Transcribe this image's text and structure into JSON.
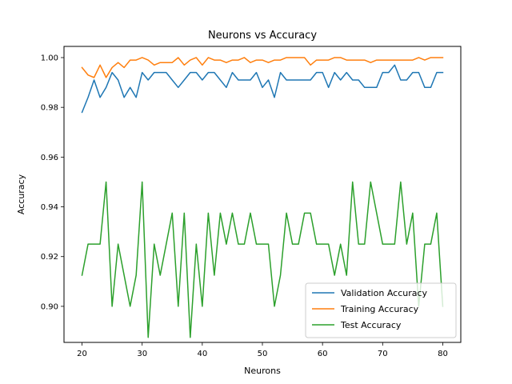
{
  "chart_data": {
    "type": "line",
    "title": "Neurons vs Accuracy",
    "xlabel": "Neurons",
    "ylabel": "Accuracy",
    "xlim": [
      17,
      83
    ],
    "ylim": [
      0.8855,
      1.0045
    ],
    "xticks": [
      20,
      30,
      40,
      50,
      60,
      70,
      80
    ],
    "xtick_labels": [
      "20",
      "30",
      "40",
      "50",
      "60",
      "70",
      "80"
    ],
    "yticks": [
      0.9,
      0.92,
      0.94,
      0.96,
      0.98,
      1.0
    ],
    "ytick_labels": [
      "0.90",
      "0.92",
      "0.94",
      "0.96",
      "0.98",
      "1.00"
    ],
    "grid": false,
    "legend_position": "lower-right",
    "x": [
      20,
      21,
      22,
      23,
      24,
      25,
      26,
      27,
      28,
      29,
      30,
      31,
      32,
      33,
      34,
      35,
      36,
      37,
      38,
      39,
      40,
      41,
      42,
      43,
      44,
      45,
      46,
      47,
      48,
      49,
      50,
      51,
      52,
      53,
      54,
      55,
      56,
      57,
      58,
      59,
      60,
      61,
      62,
      63,
      64,
      65,
      66,
      67,
      68,
      69,
      70,
      71,
      72,
      73,
      74,
      75,
      76,
      77,
      78,
      79,
      80
    ],
    "series": [
      {
        "name": "Validation Accuracy",
        "color": "#1f77b4",
        "values": [
          0.978,
          0.984,
          0.991,
          0.984,
          0.988,
          0.994,
          0.991,
          0.984,
          0.988,
          0.984,
          0.994,
          0.991,
          0.994,
          0.994,
          0.994,
          0.991,
          0.988,
          0.991,
          0.994,
          0.994,
          0.991,
          0.994,
          0.994,
          0.991,
          0.988,
          0.994,
          0.991,
          0.991,
          0.991,
          0.994,
          0.988,
          0.991,
          0.984,
          0.994,
          0.991,
          0.991,
          0.991,
          0.991,
          0.991,
          0.994,
          0.994,
          0.988,
          0.994,
          0.991,
          0.994,
          0.991,
          0.991,
          0.988,
          0.988,
          0.988,
          0.994,
          0.994,
          0.997,
          0.991,
          0.991,
          0.994,
          0.994,
          0.988,
          0.988,
          0.994,
          0.994
        ]
      },
      {
        "name": "Training Accuracy",
        "color": "#ff7f0e",
        "values": [
          0.996,
          0.993,
          0.992,
          0.997,
          0.992,
          0.996,
          0.998,
          0.996,
          0.999,
          0.999,
          1.0,
          0.999,
          0.997,
          0.998,
          0.998,
          0.998,
          1.0,
          0.997,
          0.999,
          1.0,
          0.997,
          1.0,
          0.999,
          0.999,
          0.998,
          0.999,
          0.999,
          1.0,
          0.998,
          0.999,
          0.999,
          0.998,
          0.999,
          0.999,
          1.0,
          1.0,
          1.0,
          1.0,
          0.997,
          0.999,
          0.999,
          0.999,
          1.0,
          1.0,
          0.999,
          0.999,
          0.999,
          0.999,
          0.998,
          0.999,
          0.999,
          0.999,
          0.999,
          0.999,
          0.999,
          0.999,
          1.0,
          0.999,
          1.0,
          1.0,
          1.0
        ]
      },
      {
        "name": "Test Accuracy",
        "color": "#2ca02c",
        "values": [
          0.9125,
          0.925,
          0.925,
          0.925,
          0.95,
          0.9,
          0.925,
          0.9125,
          0.9,
          0.9125,
          0.95,
          0.8875,
          0.925,
          0.9125,
          0.925,
          0.9375,
          0.9,
          0.9375,
          0.8875,
          0.925,
          0.9,
          0.9375,
          0.9125,
          0.9375,
          0.925,
          0.9375,
          0.925,
          0.925,
          0.9375,
          0.925,
          0.925,
          0.925,
          0.9,
          0.9125,
          0.9375,
          0.925,
          0.925,
          0.9375,
          0.9375,
          0.925,
          0.925,
          0.925,
          0.9125,
          0.925,
          0.9125,
          0.95,
          0.925,
          0.925,
          0.95,
          0.9375,
          0.925,
          0.925,
          0.925,
          0.95,
          0.925,
          0.9375,
          0.9,
          0.925,
          0.925,
          0.9375,
          0.9
        ]
      }
    ]
  }
}
